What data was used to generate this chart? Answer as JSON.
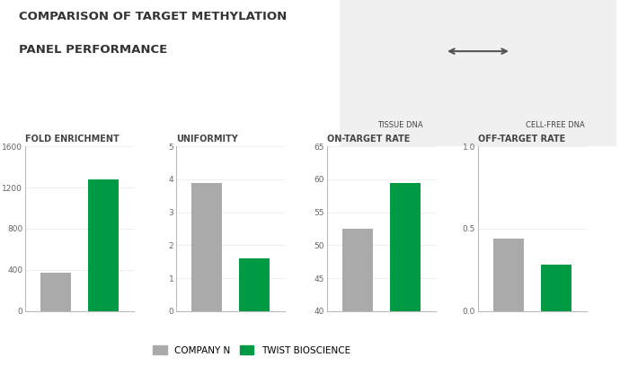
{
  "title_line1": "COMPARISON OF TARGET METHYLATION",
  "title_line2": "PANEL PERFORMANCE",
  "subplots": [
    {
      "label": "FOLD ENRICHMENT",
      "company_n": 370,
      "twist": 1280,
      "ylim": [
        0,
        1600
      ],
      "yticks": [
        0,
        400,
        800,
        1200,
        1600
      ]
    },
    {
      "label": "UNIFORMITY",
      "company_n": 3.9,
      "twist": 1.6,
      "ylim": [
        0,
        5
      ],
      "yticks": [
        0,
        1,
        2,
        3,
        4,
        5
      ]
    },
    {
      "label": "ON-TARGET RATE",
      "company_n": 52.5,
      "twist": 59.5,
      "ylim": [
        40,
        65
      ],
      "yticks": [
        40,
        45,
        50,
        55,
        60,
        65
      ]
    },
    {
      "label": "OFF-TARGET RATE",
      "company_n": 0.44,
      "twist": 0.28,
      "ylim": [
        0,
        1
      ],
      "yticks": [
        0,
        0.5,
        1
      ]
    }
  ],
  "company_n_color": "#aaaaaa",
  "twist_color": "#009a44",
  "legend_company_n": "COMPANY N",
  "legend_twist": "TWIST BIOSCIENCE",
  "bg_color": "#ffffff",
  "axis_color": "#bbbbbb",
  "title_color": "#333333",
  "label_color": "#444444",
  "tick_color": "#666666",
  "icon_bg_color": "#f0f0f0",
  "tissue_dna_label": "TISSUE DNA",
  "cell_free_dna_label": "CELL-FREE DNA"
}
